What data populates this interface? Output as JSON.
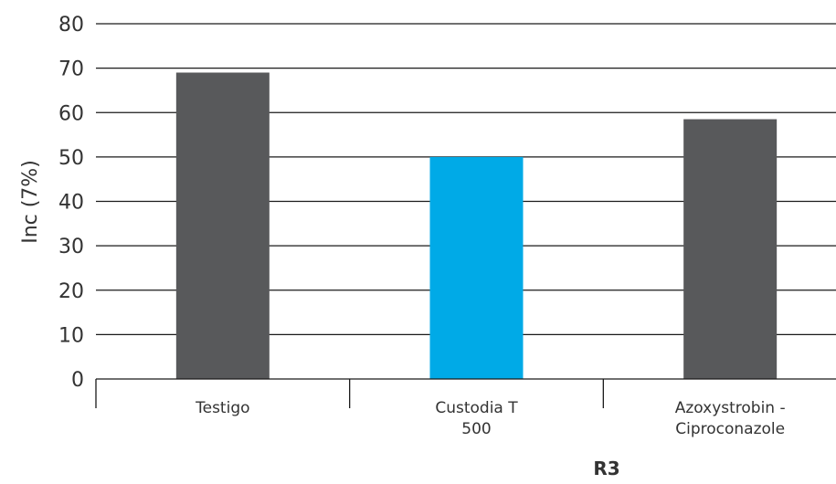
{
  "chart_data": {
    "type": "bar",
    "title": "",
    "xlabel": "R3",
    "ylabel": "Inc (7%)",
    "ylim": [
      0,
      80
    ],
    "yticks": [
      0,
      10,
      20,
      30,
      40,
      50,
      60,
      70,
      80
    ],
    "categories": [
      {
        "lines": [
          "Testigo"
        ]
      },
      {
        "lines": [
          "Custodia T",
          "500"
        ]
      },
      {
        "lines": [
          "Azoxystrobin -",
          "Ciproconazole"
        ]
      }
    ],
    "values": [
      69,
      50,
      58.5
    ],
    "colors": [
      "#58595b",
      "#00aae7",
      "#58595b"
    ],
    "grid": true,
    "legend": "none"
  }
}
